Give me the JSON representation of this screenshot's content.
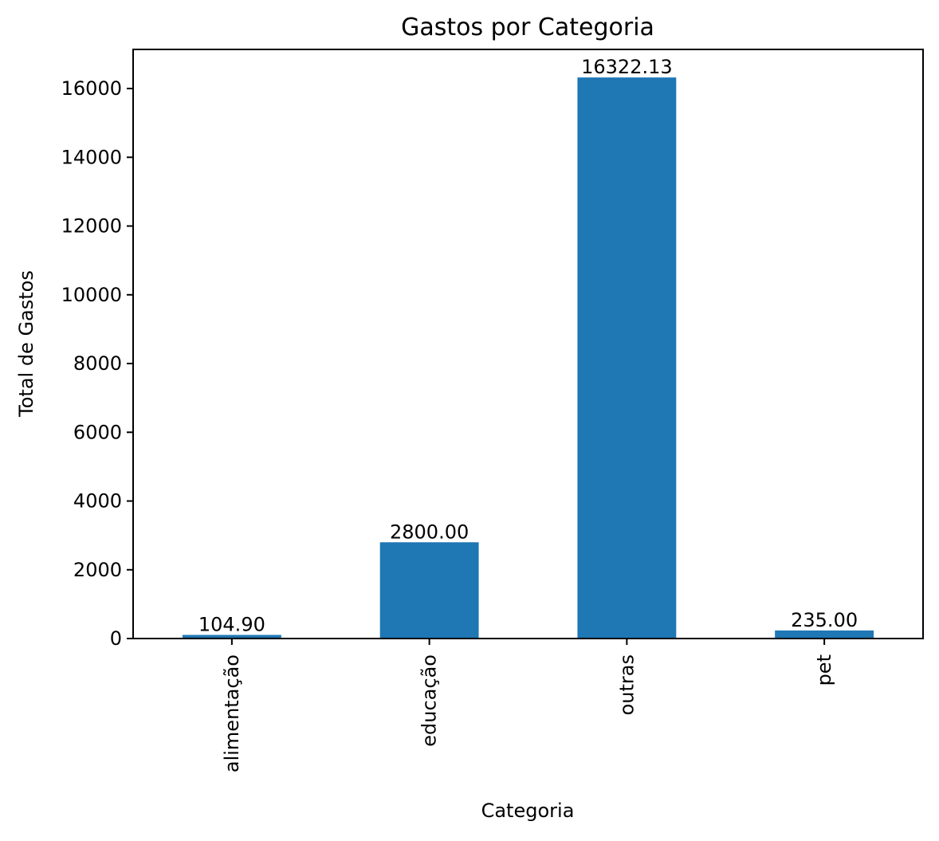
{
  "chart_data": {
    "type": "bar",
    "title": "Gastos por Categoria",
    "xlabel": "Categoria",
    "ylabel": "Total de Gastos",
    "categories": [
      "alimentação",
      "educação",
      "outras",
      "pet"
    ],
    "values": [
      104.9,
      2800.0,
      16322.13,
      235.0
    ],
    "value_labels": [
      "104.90",
      "2800.00",
      "16322.13",
      "235.00"
    ],
    "ylim": [
      0,
      17138
    ],
    "yticks": [
      0,
      2000,
      4000,
      6000,
      8000,
      10000,
      12000,
      14000,
      16000
    ],
    "ytick_labels": [
      "0",
      "2000",
      "4000",
      "6000",
      "8000",
      "10000",
      "12000",
      "14000",
      "16000"
    ],
    "bar_color": "#1f77b4",
    "grid": false,
    "legend": "none"
  }
}
